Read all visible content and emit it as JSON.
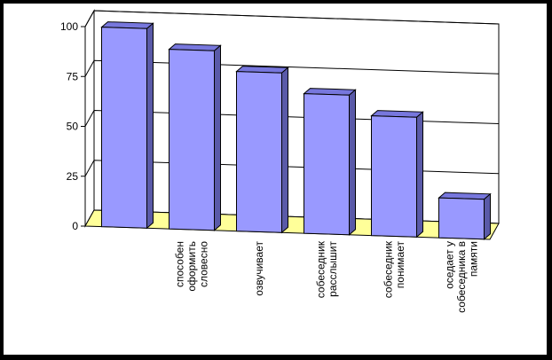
{
  "chart_data": {
    "type": "bar",
    "title": "",
    "xlabel": "",
    "ylabel": "",
    "ylim": [
      0,
      100
    ],
    "yticks": [
      0,
      25,
      50,
      75,
      100
    ],
    "grid": true,
    "legend": "none",
    "categories": [
      "",
      "способен оформить словесно",
      "озвучивает",
      "собеседник расслышит",
      "собеседник понимает",
      "оседает у собеседника в памяти"
    ],
    "label_lines": [
      [],
      [
        "способен",
        "оформить",
        "словесно"
      ],
      [
        "озвучивает"
      ],
      [
        "собеседник",
        "расслышит"
      ],
      [
        "собеседник",
        "понимает"
      ],
      [
        "оседает у",
        "собеседника в",
        "памяти"
      ]
    ],
    "values": [
      100,
      90,
      80,
      70,
      60,
      20
    ],
    "colors": {
      "bar_front": "#9999ff",
      "bar_top": "#7777dd",
      "bar_side": "#5a5aa8",
      "floor": "#ffff99",
      "frame": "#000000"
    }
  }
}
